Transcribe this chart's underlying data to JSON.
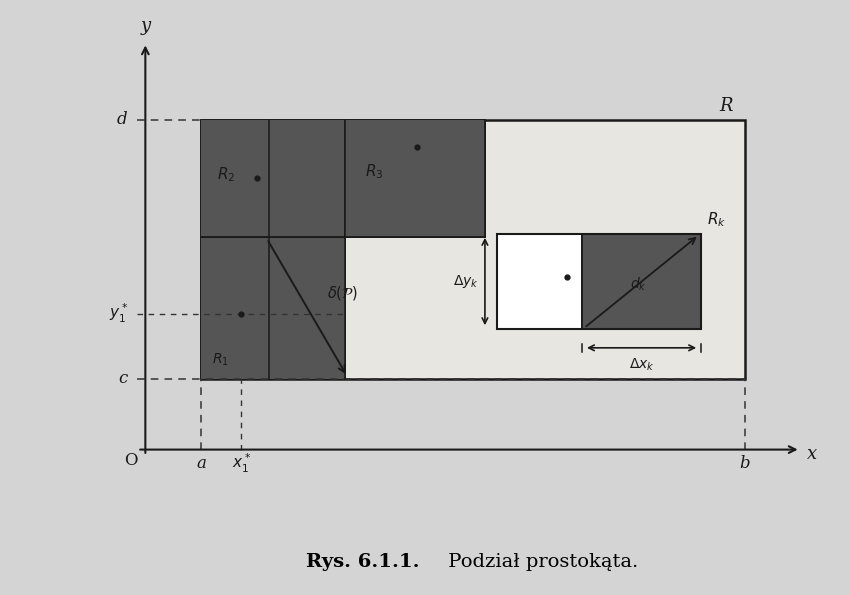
{
  "bg_color": "#d4d4d4",
  "title_bold": "Rys. 6.1.1.",
  "title_normal": " Podział prostokąta.",
  "axis_label_x": "x",
  "axis_label_y": "y",
  "label_O": "O",
  "label_R": "R",
  "label_a": "a",
  "label_b": "b",
  "label_c": "c",
  "label_d": "d",
  "label_x1s": "$x_1^*$",
  "label_y1s": "$y_1^*$",
  "label_R1": "$R_1$",
  "label_R2": "$R_2$",
  "label_R3": "$R_3$",
  "label_Rk": "$R_k$",
  "label_delta": "$\\delta(\\mathcal{P})$",
  "label_dyk": "$\\Delta y_k$",
  "label_dxk": "$\\Delta x_k$",
  "label_dk": "$d_k$",
  "line_color": "#1a1a1a",
  "dashed_color": "#333333",
  "paper_color": "#e8e6e0"
}
